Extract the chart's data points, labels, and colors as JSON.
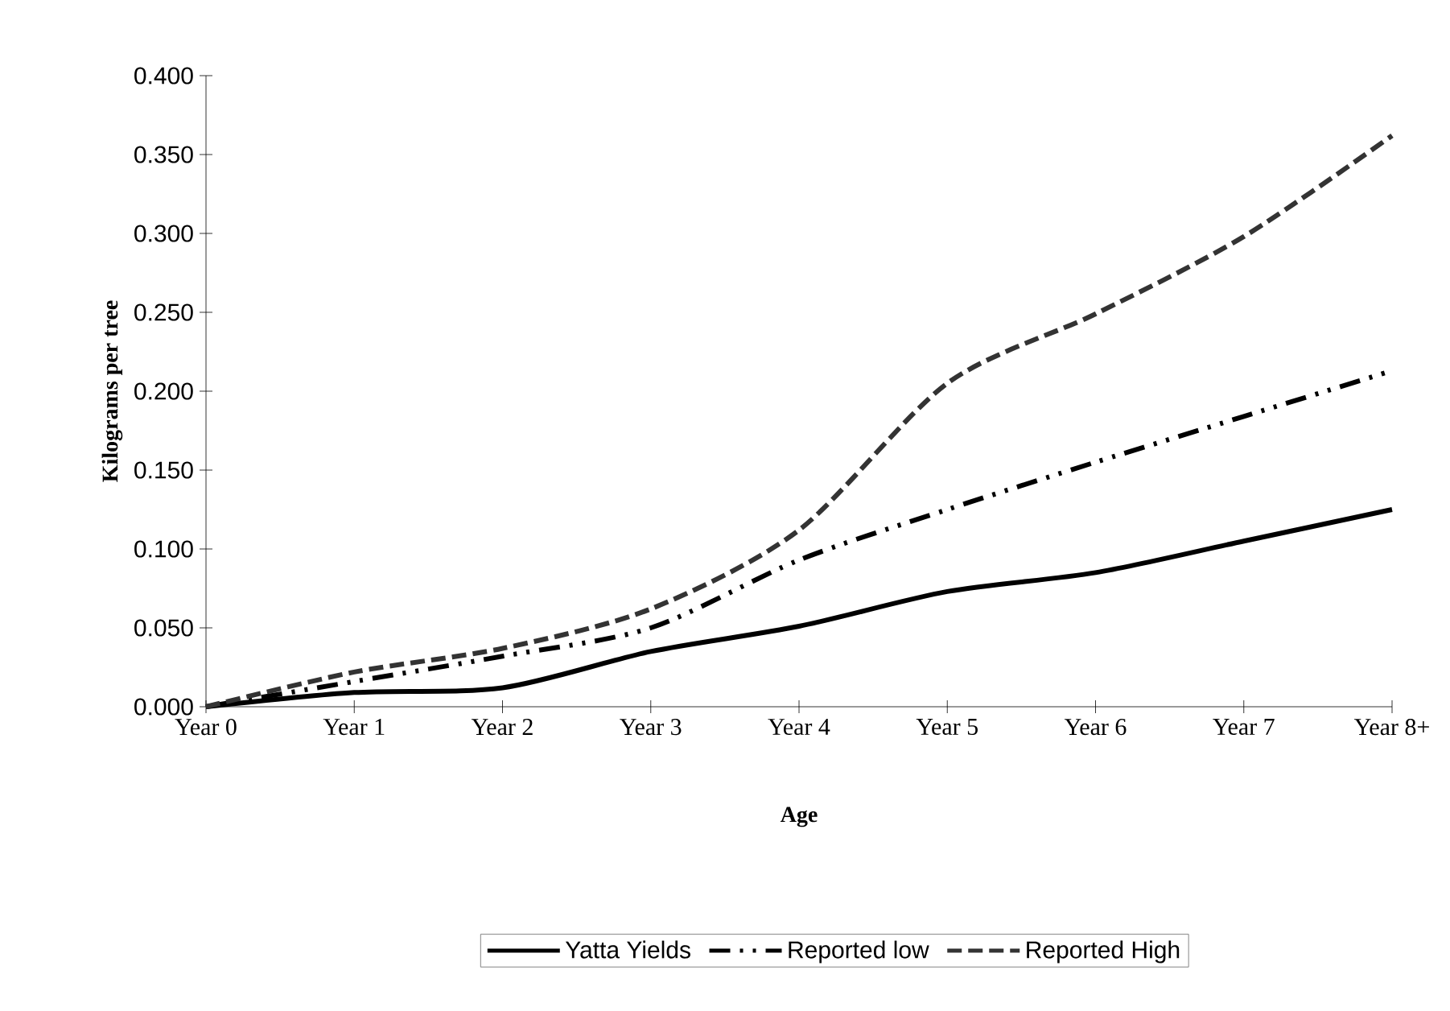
{
  "chart_data": {
    "type": "line",
    "xlabel": "Age",
    "ylabel": "Kilograms per tree",
    "categories": [
      "Year 0",
      "Year 1",
      "Year 2",
      "Year 3",
      "Year 4",
      "Year 5",
      "Year 6",
      "Year 7",
      "Year 8+"
    ],
    "series": [
      {
        "name": "Yatta Yields",
        "color": "#000000",
        "line_style": "solid",
        "values": [
          0,
          0.009,
          0.012,
          0.035,
          0.051,
          0.073,
          0.085,
          0.105,
          0.125
        ]
      },
      {
        "name": "Reported low",
        "color": "#000000",
        "line_style": "dashdotdot",
        "values": [
          0,
          0.016,
          0.032,
          0.05,
          0.093,
          0.125,
          0.155,
          0.184,
          0.213
        ]
      },
      {
        "name": "Reported High",
        "color": "#333333",
        "line_style": "dashed",
        "values": [
          0,
          0.022,
          0.037,
          0.062,
          0.112,
          0.205,
          0.249,
          0.298,
          0.362
        ]
      }
    ],
    "ylim": [
      0,
      0.4
    ],
    "yticks": [
      {
        "value": 0,
        "label": "0.000"
      },
      {
        "value": 0.05,
        "label": "0.050"
      },
      {
        "value": 0.1,
        "label": "0.100"
      },
      {
        "value": 0.15,
        "label": "0.150"
      },
      {
        "value": 0.2,
        "label": "0.200"
      },
      {
        "value": 0.25,
        "label": "0.250"
      },
      {
        "value": 0.3,
        "label": "0.300"
      },
      {
        "value": 0.35,
        "label": "0.350"
      },
      {
        "value": 0.4,
        "label": "0.400"
      }
    ],
    "legend": "bottom",
    "grid": false
  }
}
